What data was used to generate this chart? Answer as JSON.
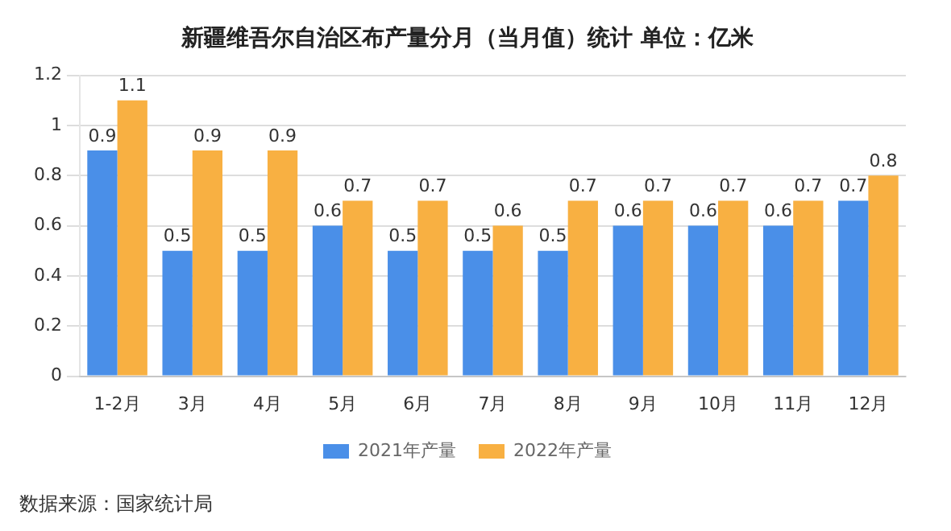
{
  "chart_data": {
    "type": "bar",
    "title": "新疆维吾尔自治区布产量分月（当月值）统计 单位：亿米",
    "categories": [
      "1-2月",
      "3月",
      "4月",
      "5月",
      "6月",
      "7月",
      "8月",
      "9月",
      "10月",
      "11月",
      "12月"
    ],
    "series": [
      {
        "name": "2021年产量",
        "color": "#4a8fe8",
        "values": [
          0.9,
          0.5,
          0.5,
          0.6,
          0.5,
          0.5,
          0.5,
          0.6,
          0.6,
          0.6,
          0.7
        ]
      },
      {
        "name": "2022年产量",
        "color": "#f8b042",
        "values": [
          1.1,
          0.9,
          0.9,
          0.7,
          0.7,
          0.6,
          0.7,
          0.7,
          0.7,
          0.7,
          0.8
        ]
      }
    ],
    "ylim": [
      0,
      1.2
    ],
    "yticks": [
      0,
      0.2,
      0.4,
      0.6,
      0.8,
      1,
      1.2
    ],
    "grid": "y",
    "legend": "bottom",
    "data_labels": true,
    "annotations": [
      "数据来源：国家统计局"
    ]
  }
}
